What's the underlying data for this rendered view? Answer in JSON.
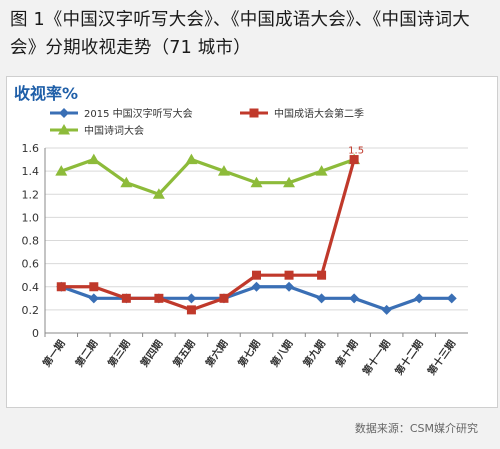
{
  "figure": {
    "title": "图 1《中国汉字听写大会》、《中国成语大会》、《中国诗词大会》分期收视走势（71 城市）",
    "source": "数据来源：CSM媒介研究"
  },
  "chart_data": {
    "type": "line",
    "title": "收视率%",
    "xlabel": "",
    "ylabel": "",
    "categories": [
      "第一期",
      "第二期",
      "第三期",
      "第四期",
      "第五期",
      "第六期",
      "第七期",
      "第八期",
      "第九期",
      "第十期",
      "第十一期",
      "第十二期",
      "第十三期"
    ],
    "ylim": [
      0,
      1.6
    ],
    "yticks": [
      "0",
      "0.2",
      "0.4",
      "0.6",
      "0.8",
      "1.0",
      "1.2",
      "1.4",
      "1.6"
    ],
    "grid": true,
    "legend": "top",
    "series": [
      {
        "name": "2015  中国汉字听写大会",
        "color": "#3a6fb5",
        "marker": "diamond",
        "values": [
          0.4,
          0.3,
          0.3,
          0.3,
          0.3,
          0.3,
          0.4,
          0.4,
          0.3,
          0.3,
          0.2,
          0.3,
          0.3
        ]
      },
      {
        "name": "中国成语大会第二季",
        "color": "#c0392b",
        "marker": "square",
        "values": [
          0.4,
          0.4,
          0.3,
          0.3,
          0.2,
          0.3,
          0.5,
          0.5,
          0.5,
          1.5,
          null,
          null,
          null
        ]
      },
      {
        "name": "中国诗词大会",
        "color": "#8dbb3a",
        "marker": "triangle",
        "values": [
          1.4,
          1.5,
          1.3,
          1.2,
          1.5,
          1.4,
          1.3,
          1.3,
          1.4,
          1.5,
          null,
          null,
          null
        ]
      }
    ],
    "annotations": [
      {
        "series": 1,
        "index": 9,
        "text": "1.5"
      }
    ]
  }
}
